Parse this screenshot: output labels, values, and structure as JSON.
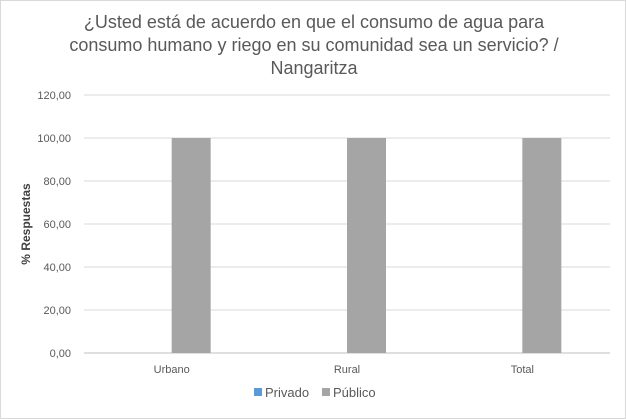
{
  "chart_data": {
    "type": "bar",
    "title_lines": [
      "¿Usted está de acuerdo en que el consumo de agua para",
      "consumo humano y riego en su comunidad sea un servicio? /",
      "Nangaritza"
    ],
    "xlabel": "",
    "ylabel": "% Respuestas",
    "ylim": [
      0,
      120
    ],
    "yticks": [
      "0,00",
      "20,00",
      "40,00",
      "60,00",
      "80,00",
      "100,00",
      "120,00"
    ],
    "ytick_values": [
      0,
      20,
      40,
      60,
      80,
      100,
      120
    ],
    "categories": [
      "Urbano",
      "Rural",
      "Total"
    ],
    "series": [
      {
        "name": "Privado",
        "values": [
          0,
          0,
          0
        ],
        "color": "#5b9bd5"
      },
      {
        "name": "Público",
        "values": [
          100,
          100,
          100
        ],
        "color": "#a5a5a5"
      }
    ],
    "grid": true,
    "legend_position": "bottom"
  }
}
